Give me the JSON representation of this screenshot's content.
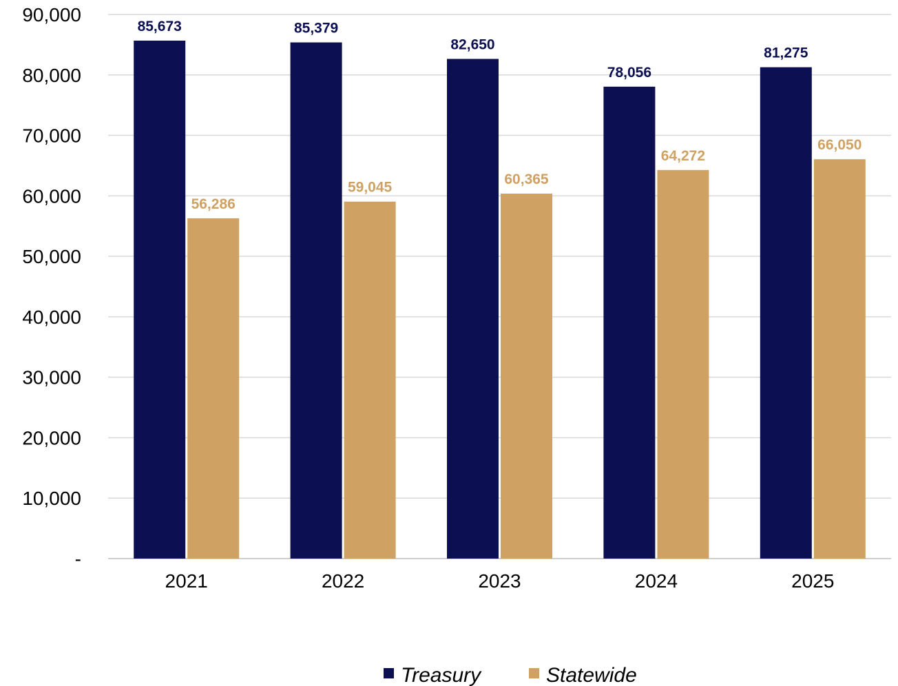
{
  "chart_data": {
    "type": "bar",
    "categories": [
      "2021",
      "2022",
      "2023",
      "2024",
      "2025"
    ],
    "series": [
      {
        "name": "Treasury",
        "values": [
          85673,
          85379,
          82650,
          78056,
          81275
        ],
        "labels": [
          "85,673",
          "85,379",
          "82,650",
          "78,056",
          "81,275"
        ],
        "color": "#0c1052"
      },
      {
        "name": "Statewide",
        "values": [
          56286,
          59045,
          60365,
          64272,
          66050
        ],
        "labels": [
          "56,286",
          "59,045",
          "60,365",
          "64,272",
          "66,050"
        ],
        "color": "#cfa163"
      }
    ],
    "yticks": [
      0,
      10000,
      20000,
      30000,
      40000,
      50000,
      60000,
      70000,
      80000,
      90000
    ],
    "ytick_labels": [
      "-",
      "10,000",
      "20,000",
      "30,000",
      "40,000",
      "50,000",
      "60,000",
      "70,000",
      "80,000",
      "90,000"
    ],
    "ylim": [
      0,
      90000
    ],
    "grid": true,
    "legend": "bottom",
    "title": "",
    "xlabel": "",
    "ylabel": ""
  }
}
